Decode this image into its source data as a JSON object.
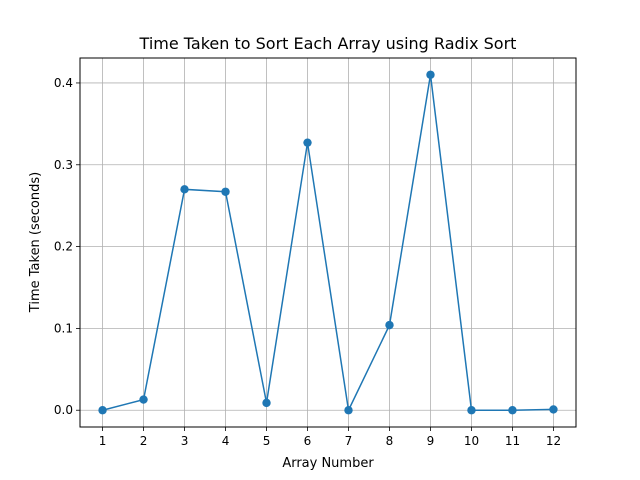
{
  "colors": {
    "line": "#1f77b4",
    "grid": "#b0b0b0",
    "axes": "#000000",
    "background": "#ffffff"
  },
  "chart_data": {
    "type": "line",
    "title": "Time Taken to Sort Each Array using Radix Sort",
    "xlabel": "Array Number",
    "ylabel": "Time Taken (seconds)",
    "x": [
      1,
      2,
      3,
      4,
      5,
      6,
      7,
      8,
      9,
      10,
      11,
      12
    ],
    "series": [
      {
        "values": [
          0.0,
          0.013,
          0.27,
          0.267,
          0.009,
          0.327,
          0.0,
          0.104,
          0.41,
          0.0,
          0.0,
          0.001
        ],
        "marker": "circle"
      }
    ],
    "xticks": [
      "1",
      "2",
      "3",
      "4",
      "5",
      "6",
      "7",
      "8",
      "9",
      "10",
      "11",
      "12"
    ],
    "yticks": [
      "0.0",
      "0.1",
      "0.2",
      "0.3",
      "0.4"
    ],
    "ytick_values": [
      0.0,
      0.1,
      0.2,
      0.3,
      0.4
    ],
    "xlim": [
      0.45,
      12.55
    ],
    "ylim": [
      -0.0205,
      0.4305
    ],
    "grid": true
  }
}
